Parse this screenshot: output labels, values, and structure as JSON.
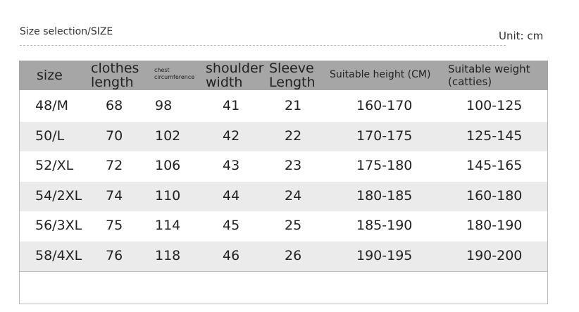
{
  "title": "Size selection/SIZE",
  "unit": "Unit: cm",
  "colors": {
    "header_bg": "#a6a6a6",
    "alt_row_bg": "#ebebeb"
  },
  "headers": {
    "size": "size",
    "clothes_length": [
      "clothes",
      "length"
    ],
    "chest": [
      "chest",
      "circumference"
    ],
    "shoulder": [
      "shoulder",
      "width"
    ],
    "sleeve": [
      "Sleeve",
      "Length"
    ],
    "height": "Suitable height (CM)",
    "weight": [
      "Suitable weight",
      "(catties)"
    ]
  },
  "rows": [
    [
      "48/M",
      "68",
      "98",
      "41",
      "21",
      "160-170",
      "100-125"
    ],
    [
      "50/L",
      "70",
      "102",
      "42",
      "22",
      "170-175",
      "125-145"
    ],
    [
      "52/XL",
      "72",
      "106",
      "43",
      "23",
      "175-180",
      "145-165"
    ],
    [
      "54/2XL",
      "74",
      "110",
      "44",
      "24",
      "180-185",
      "160-180"
    ],
    [
      "56/3XL",
      "75",
      "114",
      "45",
      "25",
      "185-190",
      "180-190"
    ],
    [
      "58/4XL",
      "76",
      "118",
      "46",
      "26",
      "190-195",
      "190-200"
    ]
  ]
}
